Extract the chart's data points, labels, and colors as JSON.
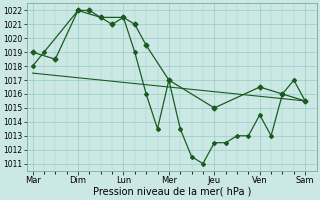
{
  "xlabel": "Pression niveau de la mer( hPa )",
  "background_color": "#cce8e4",
  "grid_color": "#99ccC8",
  "line_color": "#1a5c20",
  "ylim": [
    1010.5,
    1022.5
  ],
  "yticks": [
    1011,
    1012,
    1013,
    1014,
    1015,
    1016,
    1017,
    1018,
    1019,
    1020,
    1021,
    1022
  ],
  "day_labels": [
    "Mar",
    "Dim",
    "Lun",
    "Mer",
    "Jeu",
    "Ven",
    "Sam"
  ],
  "day_positions": [
    0,
    24,
    48,
    72,
    96,
    120,
    144
  ],
  "xlim": [
    -3,
    150
  ],
  "series_upper_x": [
    0,
    12,
    24,
    30,
    36,
    42,
    48,
    54,
    60,
    72,
    96,
    120,
    132,
    144
  ],
  "series_upper_y": [
    1019.0,
    1018.5,
    1022.0,
    1022.0,
    1021.5,
    1021.0,
    1021.5,
    1021.0,
    1019.5,
    1017.0,
    1015.0,
    1016.5,
    1016.0,
    1015.5
  ],
  "series_lower_x": [
    0,
    6,
    24,
    36,
    48,
    54,
    60,
    66,
    72,
    78,
    84,
    90,
    96,
    102,
    108,
    114,
    120,
    126,
    132,
    138,
    144
  ],
  "series_lower_y": [
    1018.0,
    1019.0,
    1022.0,
    1021.5,
    1021.5,
    1019.0,
    1016.0,
    1013.5,
    1017.0,
    1013.5,
    1011.5,
    1011.0,
    1012.5,
    1012.5,
    1013.0,
    1013.0,
    1014.5,
    1013.0,
    1016.0,
    1017.0,
    1015.5
  ],
  "trend_x": [
    0,
    144
  ],
  "trend_y": [
    1017.5,
    1015.5
  ]
}
